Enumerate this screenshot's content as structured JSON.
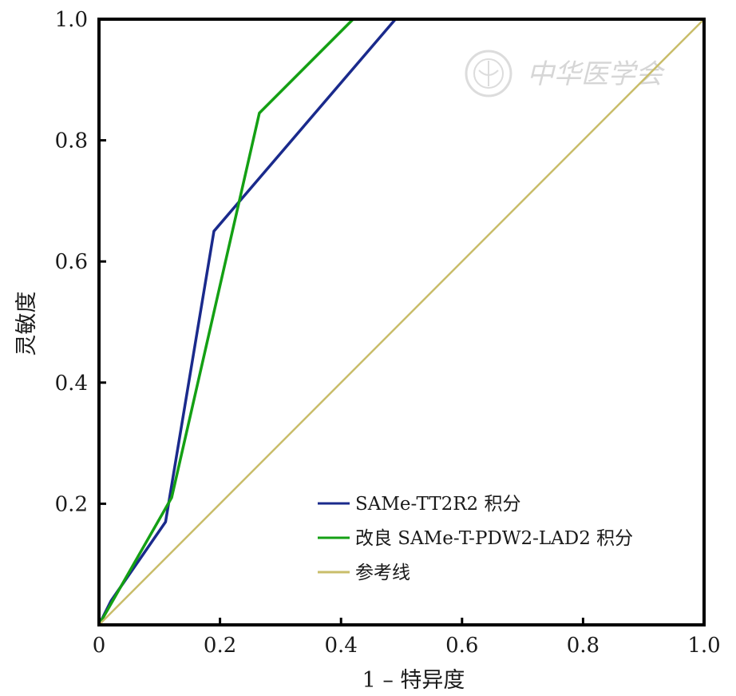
{
  "watermark": {
    "text": "中华医学会",
    "icon": "seal-logo-icon"
  },
  "chart_data": {
    "type": "line",
    "title": "",
    "xlabel": "1 – 特异度",
    "ylabel": "灵敏度",
    "xlim": [
      0,
      1
    ],
    "ylim": [
      0,
      1
    ],
    "x_ticks": [
      0,
      0.2,
      0.4,
      0.6,
      0.8,
      1.0
    ],
    "x_tick_labels": [
      "0",
      "0.2",
      "0.4",
      "0.6",
      "0.8",
      "1.0"
    ],
    "y_ticks": [
      0.2,
      0.4,
      0.6,
      0.8,
      1.0
    ],
    "y_tick_labels": [
      "0.2",
      "0.4",
      "0.6",
      "0.8",
      "1.0"
    ],
    "grid": false,
    "legend_position": "bottom-right",
    "series": [
      {
        "name": "SAMe-TT2R2 积分",
        "color": "#1a2a8c",
        "points": [
          [
            0,
            0
          ],
          [
            0.02,
            0.04
          ],
          [
            0.11,
            0.17
          ],
          [
            0.19,
            0.65
          ],
          [
            0.49,
            1.0
          ],
          [
            1.0,
            1.0
          ]
        ]
      },
      {
        "name": "改良 SAMe-T-PDW2-LAD2 积分",
        "color": "#14a014",
        "points": [
          [
            0,
            0
          ],
          [
            0.12,
            0.21
          ],
          [
            0.265,
            0.845
          ],
          [
            0.42,
            1.0
          ],
          [
            1.0,
            1.0
          ]
        ]
      },
      {
        "name": "参考线",
        "color": "#c9bd6a",
        "points": [
          [
            0,
            0
          ],
          [
            1.0,
            1.0
          ]
        ]
      }
    ]
  }
}
